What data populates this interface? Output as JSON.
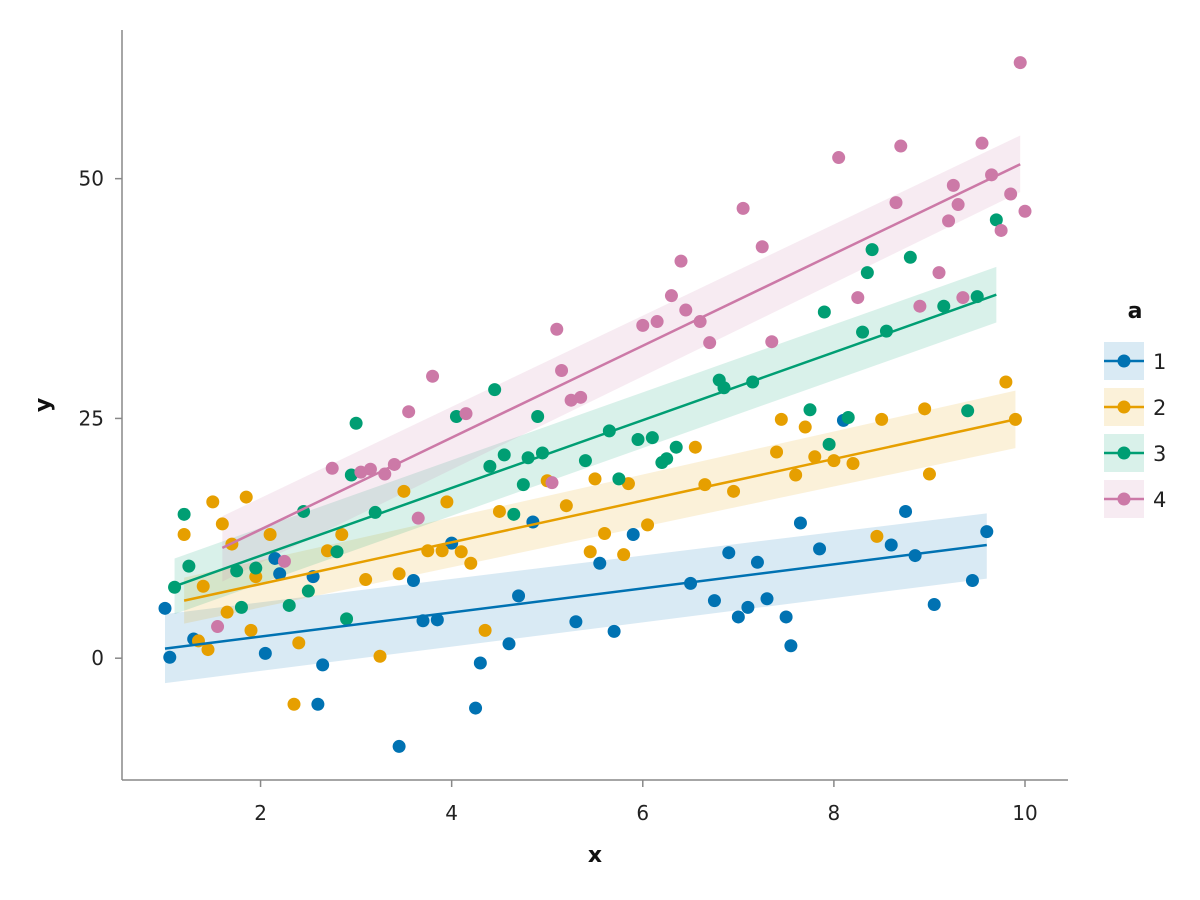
{
  "chart_data": {
    "type": "scatter",
    "xlabel": "x",
    "ylabel": "y",
    "xlim": [
      0.55,
      10.45
    ],
    "ylim": [
      -12.7,
      65.5
    ],
    "xticks": [
      2,
      4,
      6,
      8,
      10
    ],
    "yticks": [
      0,
      25,
      50
    ],
    "grid": false,
    "legend": {
      "title": "a",
      "placement": "right"
    },
    "series": [
      {
        "name": "1",
        "color": "#0072b2",
        "fit": {
          "x": [
            1.0,
            9.6
          ],
          "y": [
            1.0,
            11.8
          ],
          "lower": [
            -2.6,
            8.3
          ],
          "upper": [
            4.6,
            15.1
          ]
        },
        "points": [
          [
            1.0,
            5.2
          ],
          [
            1.05,
            0.1
          ],
          [
            1.3,
            2.0
          ],
          [
            2.05,
            0.5
          ],
          [
            2.15,
            10.4
          ],
          [
            2.2,
            8.8
          ],
          [
            2.55,
            8.5
          ],
          [
            2.6,
            -4.8
          ],
          [
            2.65,
            -0.7
          ],
          [
            3.45,
            -9.2
          ],
          [
            3.6,
            8.1
          ],
          [
            3.7,
            3.9
          ],
          [
            3.85,
            4.0
          ],
          [
            4.0,
            12.0
          ],
          [
            4.25,
            -5.2
          ],
          [
            4.3,
            -0.5
          ],
          [
            4.6,
            1.5
          ],
          [
            4.7,
            6.5
          ],
          [
            4.85,
            14.2
          ],
          [
            5.3,
            3.8
          ],
          [
            5.55,
            9.9
          ],
          [
            5.7,
            2.8
          ],
          [
            5.9,
            12.9
          ],
          [
            6.5,
            7.8
          ],
          [
            6.75,
            6.0
          ],
          [
            6.9,
            11.0
          ],
          [
            7.0,
            4.3
          ],
          [
            7.1,
            5.3
          ],
          [
            7.2,
            10.0
          ],
          [
            7.3,
            6.2
          ],
          [
            7.5,
            4.3
          ],
          [
            7.55,
            1.3
          ],
          [
            7.65,
            14.1
          ],
          [
            7.85,
            11.4
          ],
          [
            8.1,
            24.8
          ],
          [
            8.6,
            11.8
          ],
          [
            8.75,
            15.3
          ],
          [
            8.85,
            10.7
          ],
          [
            9.05,
            5.6
          ],
          [
            9.45,
            8.1
          ],
          [
            9.6,
            13.2
          ]
        ]
      },
      {
        "name": "2",
        "color": "#e69f00",
        "fit": {
          "x": [
            1.2,
            9.9
          ],
          "y": [
            6.0,
            24.9
          ],
          "lower": [
            3.6,
            21.9
          ],
          "upper": [
            8.4,
            27.9
          ]
        },
        "points": [
          [
            1.2,
            12.9
          ],
          [
            1.35,
            1.8
          ],
          [
            1.4,
            7.5
          ],
          [
            1.45,
            0.9
          ],
          [
            1.5,
            16.3
          ],
          [
            1.6,
            14.0
          ],
          [
            1.65,
            4.8
          ],
          [
            1.7,
            11.9
          ],
          [
            1.85,
            16.8
          ],
          [
            1.9,
            2.9
          ],
          [
            1.95,
            8.5
          ],
          [
            2.1,
            12.9
          ],
          [
            2.35,
            -4.8
          ],
          [
            2.4,
            1.6
          ],
          [
            2.7,
            11.2
          ],
          [
            2.85,
            12.9
          ],
          [
            3.1,
            8.2
          ],
          [
            3.25,
            0.2
          ],
          [
            3.45,
            8.8
          ],
          [
            3.5,
            17.4
          ],
          [
            3.75,
            11.2
          ],
          [
            3.9,
            11.2
          ],
          [
            3.95,
            16.3
          ],
          [
            4.1,
            11.1
          ],
          [
            4.2,
            9.9
          ],
          [
            4.35,
            2.9
          ],
          [
            4.5,
            15.3
          ],
          [
            5.0,
            18.5
          ],
          [
            5.2,
            15.9
          ],
          [
            5.45,
            11.1
          ],
          [
            5.5,
            18.7
          ],
          [
            5.6,
            13.0
          ],
          [
            5.8,
            10.8
          ],
          [
            5.85,
            18.2
          ],
          [
            6.05,
            13.9
          ],
          [
            6.55,
            22.0
          ],
          [
            6.65,
            18.1
          ],
          [
            6.95,
            17.4
          ],
          [
            7.4,
            21.5
          ],
          [
            7.45,
            24.9
          ],
          [
            7.6,
            19.1
          ],
          [
            7.7,
            24.1
          ],
          [
            7.8,
            21.0
          ],
          [
            8.0,
            20.6
          ],
          [
            8.2,
            20.3
          ],
          [
            8.45,
            12.7
          ],
          [
            8.5,
            24.9
          ],
          [
            8.95,
            26.0
          ],
          [
            9.0,
            19.2
          ],
          [
            9.8,
            28.8
          ],
          [
            9.9,
            24.9
          ]
        ]
      },
      {
        "name": "3",
        "color": "#009e73",
        "fit": {
          "x": [
            1.1,
            9.7
          ],
          "y": [
            7.5,
            37.9
          ],
          "lower": [
            4.6,
            35.0
          ],
          "upper": [
            10.4,
            40.8
          ]
        },
        "points": [
          [
            1.1,
            7.4
          ],
          [
            1.2,
            15.0
          ],
          [
            1.25,
            9.6
          ],
          [
            1.75,
            9.1
          ],
          [
            1.8,
            5.3
          ],
          [
            1.95,
            9.4
          ],
          [
            2.3,
            5.5
          ],
          [
            2.45,
            15.3
          ],
          [
            2.5,
            7.0
          ],
          [
            2.8,
            11.1
          ],
          [
            2.9,
            4.1
          ],
          [
            2.95,
            19.1
          ],
          [
            3.0,
            24.5
          ],
          [
            3.2,
            15.2
          ],
          [
            4.05,
            25.2
          ],
          [
            4.4,
            20.0
          ],
          [
            4.45,
            28.0
          ],
          [
            4.55,
            21.2
          ],
          [
            4.65,
            15.0
          ],
          [
            4.75,
            18.1
          ],
          [
            4.8,
            20.9
          ],
          [
            4.9,
            25.2
          ],
          [
            4.95,
            21.4
          ],
          [
            5.4,
            20.6
          ],
          [
            5.75,
            18.7
          ],
          [
            5.65,
            23.7
          ],
          [
            5.95,
            22.8
          ],
          [
            6.1,
            23.0
          ],
          [
            6.2,
            20.4
          ],
          [
            6.25,
            20.8
          ],
          [
            6.35,
            22.0
          ],
          [
            6.8,
            29.0
          ],
          [
            6.85,
            28.2
          ],
          [
            7.15,
            28.8
          ],
          [
            7.75,
            25.9
          ],
          [
            7.9,
            36.1
          ],
          [
            7.95,
            22.3
          ],
          [
            8.15,
            25.1
          ],
          [
            8.3,
            34.0
          ],
          [
            8.35,
            40.2
          ],
          [
            8.4,
            42.6
          ],
          [
            8.55,
            34.1
          ],
          [
            8.8,
            41.8
          ],
          [
            9.15,
            36.7
          ],
          [
            9.4,
            25.8
          ],
          [
            9.5,
            37.7
          ],
          [
            9.7,
            45.7
          ]
        ]
      },
      {
        "name": "4",
        "color": "#cc79a7",
        "fit": {
          "x": [
            1.6,
            9.95
          ],
          "y": [
            11.5,
            51.5
          ],
          "lower": [
            8.0,
            48.6
          ],
          "upper": [
            14.8,
            54.5
          ]
        },
        "points": [
          [
            1.55,
            3.3
          ],
          [
            2.25,
            10.1
          ],
          [
            2.75,
            19.8
          ],
          [
            3.05,
            19.4
          ],
          [
            3.15,
            19.7
          ],
          [
            3.3,
            19.2
          ],
          [
            3.4,
            20.2
          ],
          [
            3.55,
            25.7
          ],
          [
            3.65,
            14.6
          ],
          [
            3.8,
            29.4
          ],
          [
            4.15,
            25.5
          ],
          [
            5.05,
            18.3
          ],
          [
            5.1,
            34.3
          ],
          [
            5.15,
            30.0
          ],
          [
            5.25,
            26.9
          ],
          [
            5.35,
            27.2
          ],
          [
            6.0,
            34.7
          ],
          [
            6.15,
            35.1
          ],
          [
            6.3,
            37.8
          ],
          [
            6.4,
            41.4
          ],
          [
            6.45,
            36.3
          ],
          [
            6.6,
            35.1
          ],
          [
            6.7,
            32.9
          ],
          [
            7.05,
            46.9
          ],
          [
            7.25,
            42.9
          ],
          [
            7.35,
            33.0
          ],
          [
            8.05,
            52.2
          ],
          [
            8.25,
            37.6
          ],
          [
            8.65,
            47.5
          ],
          [
            8.7,
            53.4
          ],
          [
            8.9,
            36.7
          ],
          [
            9.1,
            40.2
          ],
          [
            9.2,
            45.6
          ],
          [
            9.25,
            49.3
          ],
          [
            9.3,
            47.3
          ],
          [
            9.35,
            37.6
          ],
          [
            9.55,
            53.7
          ],
          [
            9.65,
            50.4
          ],
          [
            9.75,
            44.6
          ],
          [
            9.85,
            48.4
          ],
          [
            9.95,
            62.1
          ],
          [
            10.0,
            46.6
          ]
        ]
      }
    ]
  }
}
